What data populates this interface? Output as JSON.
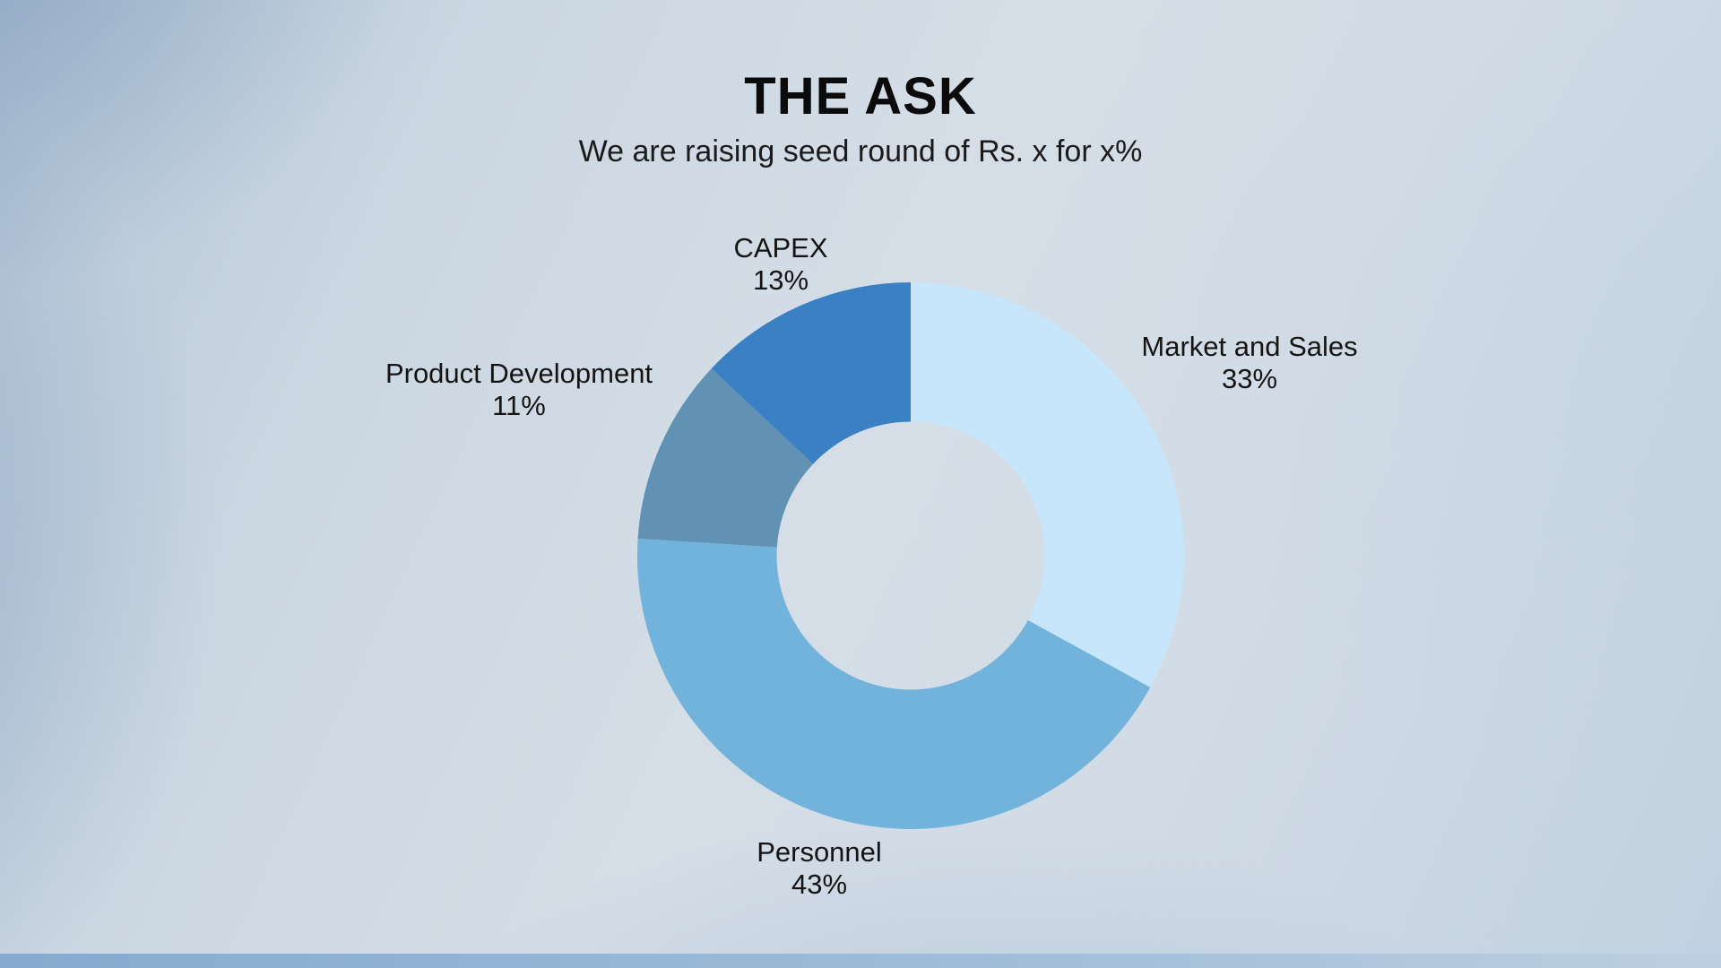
{
  "header": {
    "title": "THE ASK",
    "subtitle": "We are raising seed round of Rs. x for x%"
  },
  "chart_data": {
    "type": "pie",
    "variant": "donut",
    "title": "THE ASK",
    "subtitle": "We are raising seed round of Rs. x for x%",
    "categories": [
      "Market and Sales",
      "Personnel",
      "Product Development",
      "CAPEX"
    ],
    "values": [
      33,
      43,
      11,
      13
    ],
    "percent_labels": [
      "33%",
      "43%",
      "11%",
      "13%"
    ],
    "colors": [
      "#c8e6f9",
      "#72b3db",
      "#6192b4",
      "#3b80c3"
    ],
    "start_angle_deg": 0,
    "direction": "clockwise",
    "inner_radius_ratio": 0.49,
    "labels_position": "outside",
    "legend": "none",
    "background_accent": "#b2c4d7"
  }
}
